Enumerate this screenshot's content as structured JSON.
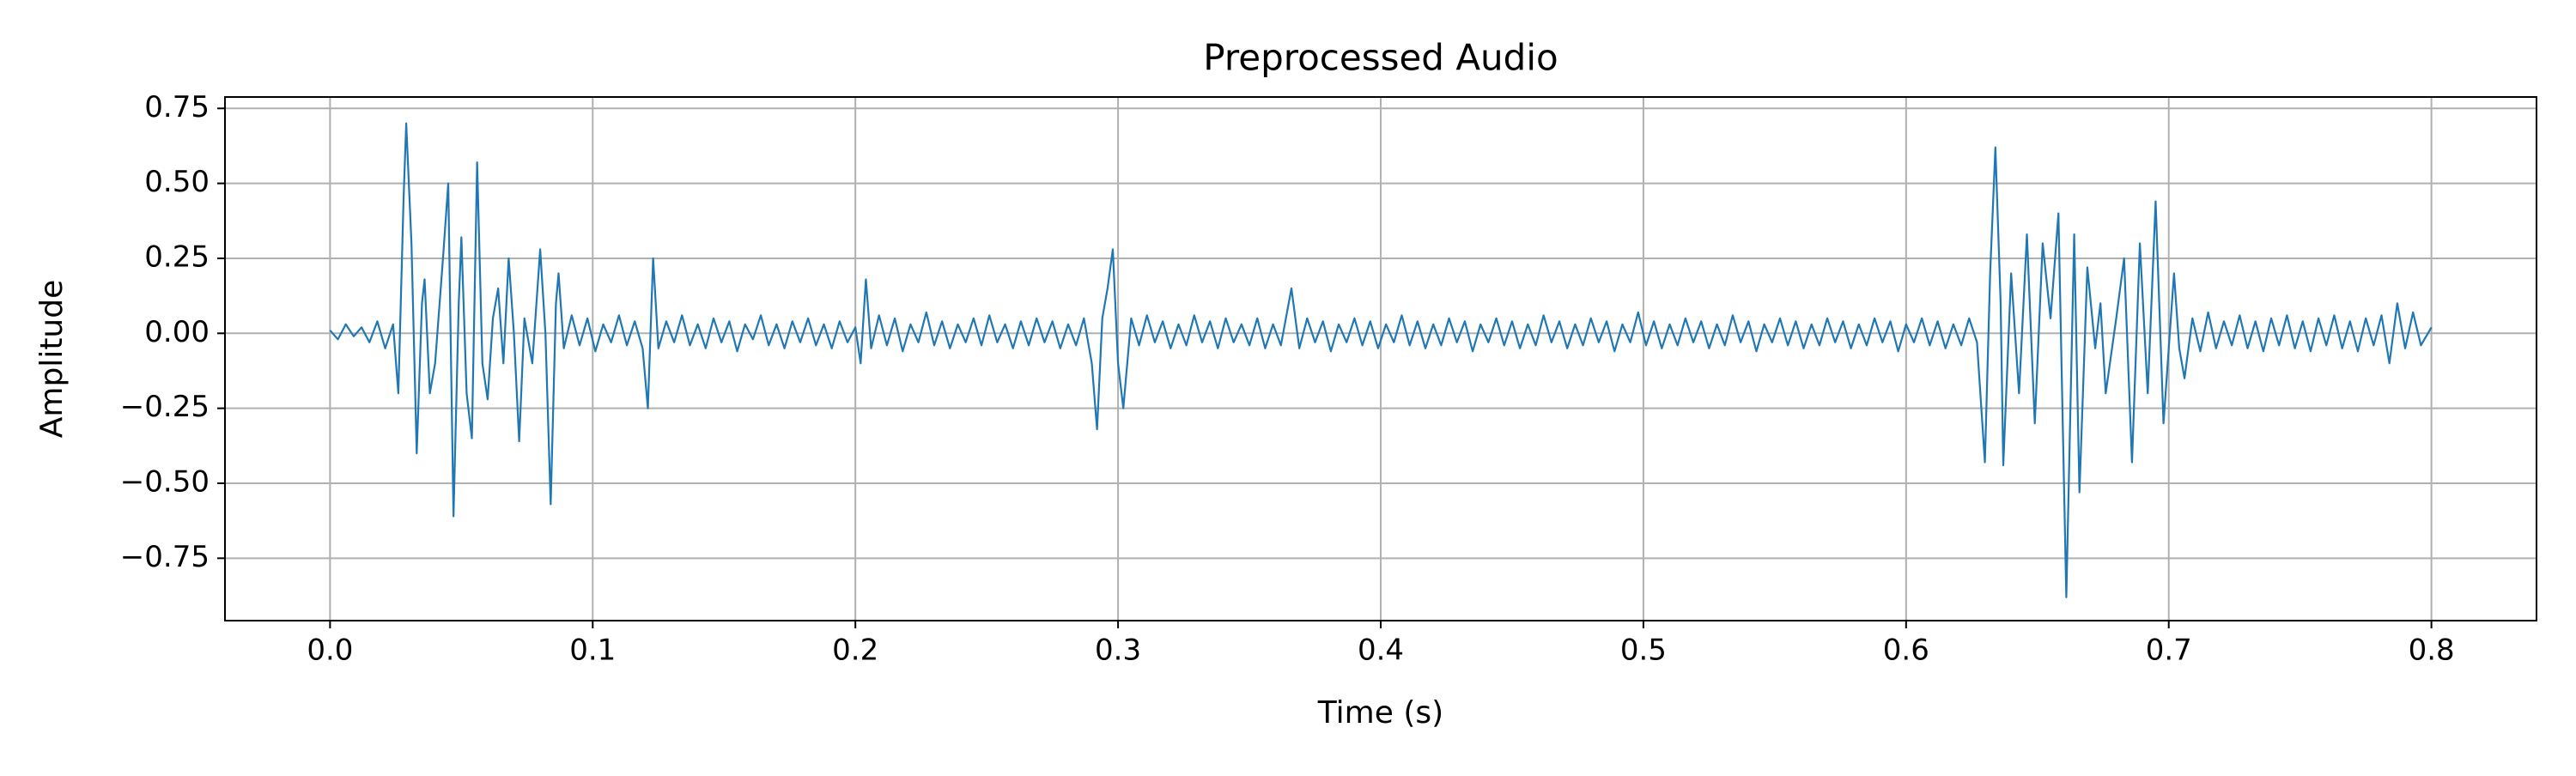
{
  "chart_data": {
    "type": "line",
    "title": "Preprocessed Audio",
    "x_label": "Time (s)",
    "y_label": "Amplitude",
    "color": "#1f77b4",
    "grid": true,
    "xlim": [
      -0.04,
      0.84
    ],
    "ylim": [
      -0.958,
      0.788
    ],
    "xticks": [
      {
        "value": 0,
        "label": "0.0"
      },
      0.1,
      0.2,
      0.3,
      0.4,
      0.5,
      0.6,
      0.7,
      0.8
    ],
    "yticks": [
      {
        "value": -0.75,
        "label": "−0.75"
      },
      {
        "value": -0.5,
        "label": "−0.50"
      },
      {
        "value": -0.25,
        "label": "−0.25"
      },
      {
        "value": 0,
        "label": "0.00"
      },
      0.25,
      {
        "value": 0.5,
        "label": "0.50"
      },
      0.75
    ],
    "x": [
      0.0,
      0.003,
      0.006,
      0.009,
      0.012,
      0.015,
      0.018,
      0.021,
      0.024,
      0.026,
      0.028,
      0.029,
      0.031,
      0.033,
      0.035,
      0.036,
      0.038,
      0.04,
      0.043,
      0.045,
      0.047,
      0.049,
      0.05,
      0.052,
      0.054,
      0.056,
      0.058,
      0.06,
      0.062,
      0.064,
      0.066,
      0.068,
      0.07,
      0.072,
      0.074,
      0.077,
      0.08,
      0.082,
      0.084,
      0.086,
      0.087,
      0.089,
      0.092,
      0.095,
      0.098,
      0.101,
      0.104,
      0.107,
      0.11,
      0.113,
      0.116,
      0.119,
      0.121,
      0.123,
      0.125,
      0.128,
      0.131,
      0.134,
      0.137,
      0.14,
      0.143,
      0.146,
      0.149,
      0.152,
      0.155,
      0.158,
      0.161,
      0.164,
      0.167,
      0.17,
      0.173,
      0.176,
      0.179,
      0.182,
      0.185,
      0.188,
      0.191,
      0.194,
      0.197,
      0.2,
      0.202,
      0.204,
      0.206,
      0.209,
      0.212,
      0.215,
      0.218,
      0.221,
      0.224,
      0.227,
      0.23,
      0.233,
      0.236,
      0.239,
      0.242,
      0.245,
      0.248,
      0.251,
      0.254,
      0.257,
      0.26,
      0.263,
      0.266,
      0.269,
      0.272,
      0.275,
      0.278,
      0.281,
      0.284,
      0.287,
      0.29,
      0.292,
      0.294,
      0.296,
      0.298,
      0.3,
      0.302,
      0.305,
      0.308,
      0.311,
      0.314,
      0.317,
      0.32,
      0.323,
      0.326,
      0.329,
      0.332,
      0.335,
      0.338,
      0.341,
      0.344,
      0.347,
      0.35,
      0.353,
      0.356,
      0.359,
      0.362,
      0.366,
      0.369,
      0.372,
      0.375,
      0.378,
      0.381,
      0.384,
      0.387,
      0.39,
      0.393,
      0.396,
      0.399,
      0.402,
      0.405,
      0.408,
      0.411,
      0.414,
      0.417,
      0.42,
      0.423,
      0.426,
      0.429,
      0.432,
      0.435,
      0.438,
      0.441,
      0.444,
      0.447,
      0.45,
      0.453,
      0.456,
      0.459,
      0.462,
      0.465,
      0.468,
      0.471,
      0.474,
      0.477,
      0.48,
      0.483,
      0.486,
      0.489,
      0.492,
      0.495,
      0.498,
      0.501,
      0.504,
      0.507,
      0.51,
      0.513,
      0.516,
      0.519,
      0.522,
      0.525,
      0.528,
      0.531,
      0.534,
      0.537,
      0.54,
      0.543,
      0.546,
      0.549,
      0.552,
      0.555,
      0.558,
      0.561,
      0.564,
      0.567,
      0.57,
      0.573,
      0.576,
      0.579,
      0.582,
      0.585,
      0.588,
      0.591,
      0.594,
      0.597,
      0.6,
      0.603,
      0.606,
      0.609,
      0.612,
      0.615,
      0.618,
      0.621,
      0.624,
      0.627,
      0.63,
      0.632,
      0.634,
      0.636,
      0.637,
      0.64,
      0.643,
      0.646,
      0.649,
      0.652,
      0.655,
      0.658,
      0.661,
      0.664,
      0.666,
      0.669,
      0.672,
      0.674,
      0.676,
      0.68,
      0.683,
      0.686,
      0.689,
      0.692,
      0.695,
      0.698,
      0.702,
      0.704,
      0.706,
      0.709,
      0.712,
      0.715,
      0.718,
      0.721,
      0.724,
      0.727,
      0.73,
      0.733,
      0.736,
      0.739,
      0.742,
      0.745,
      0.748,
      0.751,
      0.754,
      0.757,
      0.76,
      0.763,
      0.766,
      0.769,
      0.772,
      0.775,
      0.778,
      0.781,
      0.784,
      0.787,
      0.79,
      0.793,
      0.796,
      0.8
    ],
    "values": [
      0.01,
      -0.02,
      0.03,
      -0.01,
      0.02,
      -0.03,
      0.04,
      -0.05,
      0.03,
      -0.2,
      0.45,
      0.7,
      0.3,
      -0.4,
      0.1,
      0.18,
      -0.2,
      -0.1,
      0.25,
      0.5,
      -0.61,
      0.1,
      0.32,
      -0.2,
      -0.35,
      0.57,
      -0.1,
      -0.22,
      0.05,
      0.15,
      -0.1,
      0.25,
      0.0,
      -0.36,
      0.05,
      -0.1,
      0.28,
      0.0,
      -0.57,
      0.1,
      0.2,
      -0.05,
      0.06,
      -0.04,
      0.05,
      -0.06,
      0.03,
      -0.03,
      0.06,
      -0.04,
      0.04,
      -0.05,
      -0.25,
      0.25,
      -0.05,
      0.04,
      -0.03,
      0.06,
      -0.04,
      0.03,
      -0.05,
      0.05,
      -0.03,
      0.04,
      -0.06,
      0.03,
      -0.02,
      0.06,
      -0.04,
      0.03,
      -0.05,
      0.04,
      -0.03,
      0.05,
      -0.04,
      0.03,
      -0.05,
      0.04,
      -0.03,
      0.02,
      -0.1,
      0.18,
      -0.05,
      0.06,
      -0.04,
      0.05,
      -0.06,
      0.03,
      -0.03,
      0.07,
      -0.04,
      0.04,
      -0.05,
      0.03,
      -0.03,
      0.05,
      -0.04,
      0.06,
      -0.03,
      0.03,
      -0.05,
      0.04,
      -0.04,
      0.05,
      -0.03,
      0.04,
      -0.05,
      0.03,
      -0.04,
      0.05,
      -0.1,
      -0.32,
      0.05,
      0.15,
      0.28,
      -0.1,
      -0.25,
      0.05,
      -0.04,
      0.06,
      -0.03,
      0.04,
      -0.05,
      0.03,
      -0.04,
      0.06,
      -0.03,
      0.04,
      -0.05,
      0.05,
      -0.03,
      0.03,
      -0.04,
      0.05,
      -0.05,
      0.03,
      -0.04,
      0.15,
      -0.05,
      0.05,
      -0.03,
      0.04,
      -0.06,
      0.03,
      -0.03,
      0.05,
      -0.04,
      0.04,
      -0.05,
      0.03,
      -0.03,
      0.06,
      -0.04,
      0.04,
      -0.05,
      0.03,
      -0.04,
      0.05,
      -0.03,
      0.04,
      -0.06,
      0.03,
      -0.03,
      0.05,
      -0.04,
      0.04,
      -0.05,
      0.03,
      -0.04,
      0.06,
      -0.03,
      0.04,
      -0.05,
      0.03,
      -0.04,
      0.05,
      -0.03,
      0.04,
      -0.06,
      0.03,
      -0.03,
      0.07,
      -0.04,
      0.04,
      -0.05,
      0.03,
      -0.04,
      0.05,
      -0.03,
      0.04,
      -0.05,
      0.03,
      -0.04,
      0.06,
      -0.03,
      0.04,
      -0.06,
      0.03,
      -0.03,
      0.05,
      -0.04,
      0.04,
      -0.05,
      0.03,
      -0.04,
      0.05,
      -0.03,
      0.04,
      -0.05,
      0.03,
      -0.04,
      0.05,
      -0.03,
      0.04,
      -0.06,
      0.03,
      -0.03,
      0.05,
      -0.04,
      0.04,
      -0.05,
      0.03,
      -0.04,
      0.05,
      -0.03,
      -0.43,
      0.2,
      0.62,
      0.1,
      -0.44,
      0.2,
      -0.2,
      0.33,
      -0.3,
      0.3,
      0.05,
      0.4,
      -0.88,
      0.33,
      -0.53,
      0.22,
      -0.05,
      0.1,
      -0.2,
      0.05,
      0.25,
      -0.43,
      0.3,
      -0.2,
      0.44,
      -0.3,
      0.2,
      -0.05,
      -0.15,
      0.05,
      -0.06,
      0.07,
      -0.05,
      0.04,
      -0.04,
      0.06,
      -0.05,
      0.04,
      -0.06,
      0.05,
      -0.04,
      0.06,
      -0.05,
      0.04,
      -0.06,
      0.05,
      -0.04,
      0.06,
      -0.05,
      0.04,
      -0.06,
      0.05,
      -0.04,
      0.06,
      -0.1,
      0.1,
      -0.05,
      0.07,
      -0.04,
      0.02
    ]
  }
}
